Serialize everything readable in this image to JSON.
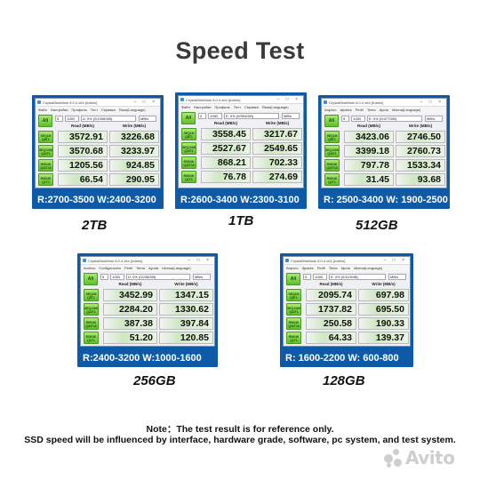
{
  "title": "Speed Test",
  "app_title": "CrystalDiskMark 8.0.4 x64 [Admin]",
  "labels": {
    "all": "All",
    "read_header": "Read (MB/s)",
    "write_header": "Write (MB/s)",
    "runs": "5",
    "size": "1GiB",
    "unit": "MB/s",
    "tests": [
      {
        "l1": "SEQ1M",
        "l2": "Q8T1"
      },
      {
        "l1": "SEQ128K",
        "l2": "Q32T1"
      },
      {
        "l1": "RND4K",
        "l2": "Q32T16"
      },
      {
        "l1": "RND4K",
        "l2": "Q1T1"
      }
    ]
  },
  "window_controls": "– □ ×",
  "cards": [
    {
      "caption": "2TB",
      "menu": [
        "Файл",
        "Настройки",
        "Профиль",
        "Тест",
        "Справка",
        "Язык(Language)"
      ],
      "drive": "A: 0% (0/1908GiB)",
      "read": [
        "3572.91",
        "3570.68",
        "1205.56",
        "66.54"
      ],
      "write": [
        "3226.68",
        "3233.97",
        "924.85",
        "290.95"
      ],
      "speed": "R:2700-3500  W:2400-3200"
    },
    {
      "caption": "1TB",
      "menu": [
        "Файл",
        "Настройки",
        "Профиль",
        "Тест",
        "Справка",
        "Язык(Language)"
      ],
      "drive": "E: 0% (0/954GiB)",
      "read": [
        "3558.45",
        "2527.67",
        "868.21",
        "76.78"
      ],
      "write": [
        "3217.67",
        "2549.65",
        "702.33",
        "274.69"
      ],
      "speed": "R:2600-3400  W:2300-3100"
    },
    {
      "caption": "512GB",
      "menu": [
        "Arquivo",
        "Ajustes",
        "Perfil",
        "Tema",
        "Ajuda",
        "Idioma(Language)"
      ],
      "drive": "E: 0% (0/477GiB)",
      "read": [
        "3423.06",
        "3399.18",
        "797.78",
        "31.45"
      ],
      "write": [
        "2746.50",
        "2760.73",
        "1533.34",
        "93.68"
      ],
      "speed": "R: 2500-3400  W: 1900-2500"
    },
    {
      "caption": "256GB",
      "menu": [
        "Archivo",
        "Configuración",
        "Perfil",
        "Tema",
        "Ayuda",
        "Idioma(Language)"
      ],
      "drive": "D: 0% (0/238GiB)",
      "read": [
        "3452.99",
        "2284.20",
        "387.38",
        "51.20"
      ],
      "write": [
        "1347.15",
        "1330.62",
        "397.84",
        "120.85"
      ],
      "speed": "R:2400-3200  W:1000-1600"
    },
    {
      "caption": "128GB",
      "menu": [
        "Arquivo",
        "Ajustes",
        "Perfil",
        "Tema",
        "Ajuda",
        "Idioma(Language)"
      ],
      "drive": "E: 0% (0/119GiB)",
      "read": [
        "2095.74",
        "1737.82",
        "250.58",
        "64.33"
      ],
      "write": [
        "697.98",
        "695.50",
        "190.33",
        "139.37"
      ],
      "speed": "R: 1600-2200  W: 600-800"
    }
  ],
  "note_line1": "Note：The test result is for reference only.",
  "note_line2": "SSD speed will be influenced by interface, hardware grade, software, pc system, and test system.",
  "watermark": "Avito"
}
